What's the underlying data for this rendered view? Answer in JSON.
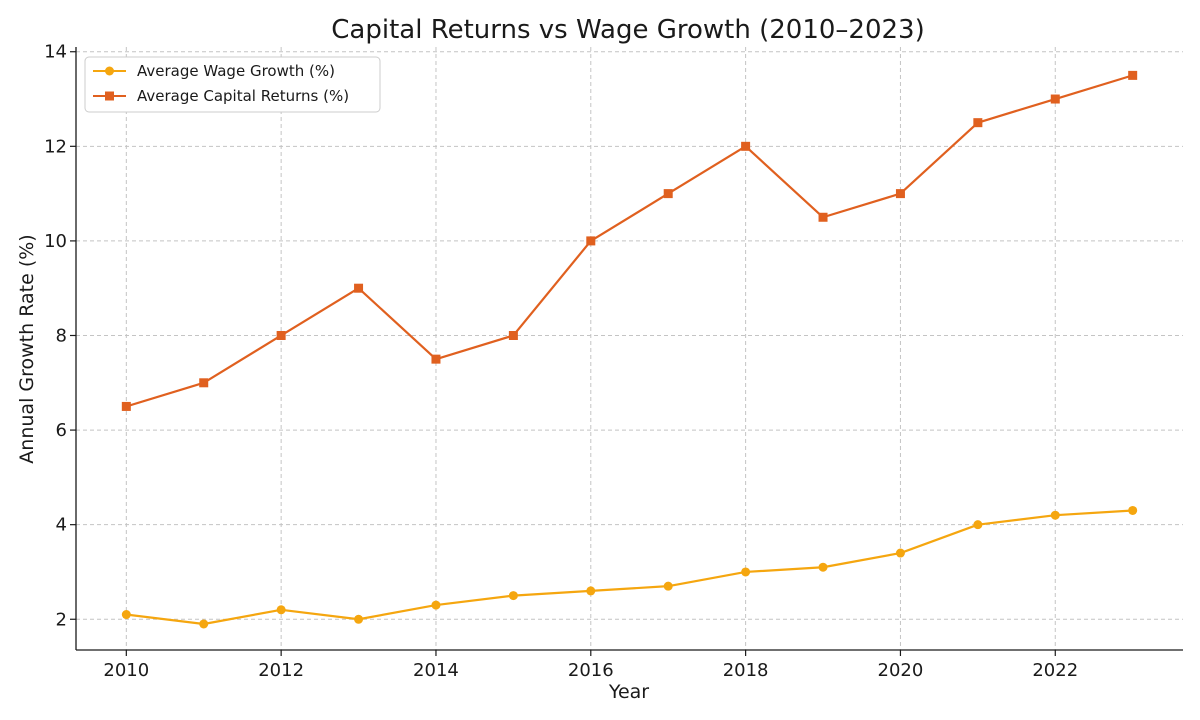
{
  "chart_data": {
    "type": "line",
    "title": "Capital Returns vs Wage Growth (2010–2023)",
    "xlabel": "Year",
    "ylabel": "Annual Growth Rate (%)",
    "x": [
      2010,
      2011,
      2012,
      2013,
      2014,
      2015,
      2016,
      2017,
      2018,
      2019,
      2020,
      2021,
      2022,
      2023
    ],
    "xlim": [
      2009.35,
      2023.65
    ],
    "ylim": [
      1.35,
      14.1
    ],
    "xticks": [
      2010,
      2012,
      2014,
      2016,
      2018,
      2020,
      2022
    ],
    "yticks": [
      2,
      4,
      6,
      8,
      10,
      12,
      14
    ],
    "grid": true,
    "legend_position": "top-left",
    "series": [
      {
        "name": "Average Wage Growth (%)",
        "color": "#F5A60F",
        "marker": "circle",
        "values": [
          2.1,
          1.9,
          2.2,
          2.0,
          2.3,
          2.5,
          2.6,
          2.7,
          3.0,
          3.1,
          3.4,
          4.0,
          4.2,
          4.3
        ]
      },
      {
        "name": "Average Capital Returns (%)",
        "color": "#E0601F",
        "marker": "square",
        "values": [
          6.5,
          7.0,
          8.0,
          9.0,
          7.5,
          8.0,
          10.0,
          11.0,
          12.0,
          10.5,
          11.0,
          12.5,
          13.0,
          13.5
        ]
      }
    ]
  }
}
